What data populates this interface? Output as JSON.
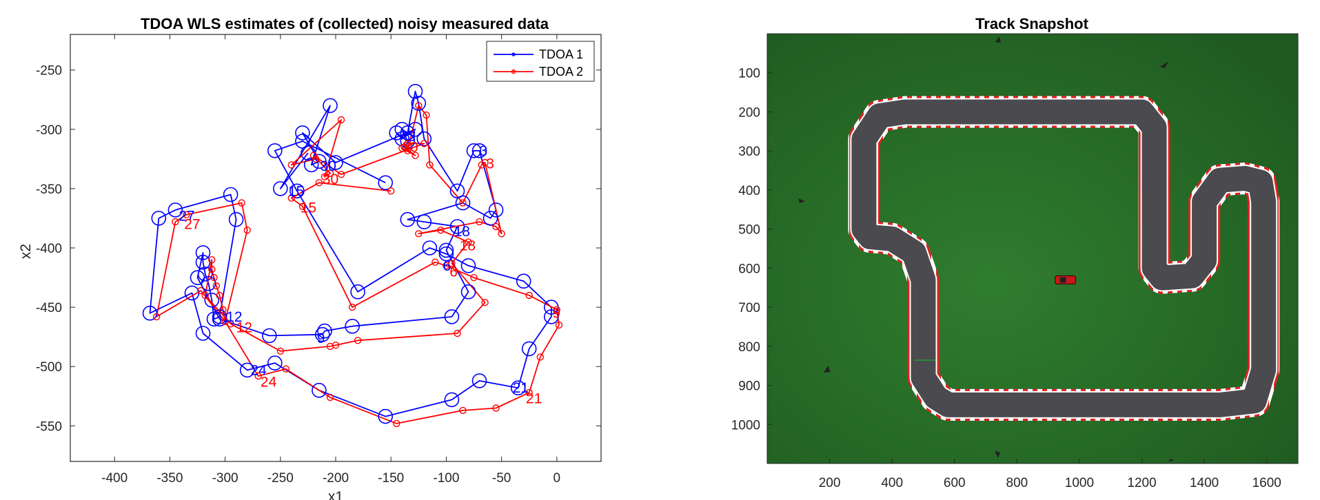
{
  "chart_data": [
    {
      "type": "line",
      "title": "TDOA WLS estimates of (collected) noisy measured data",
      "xlabel": "x1",
      "ylabel": "x2",
      "xlim": [
        -440,
        40
      ],
      "ylim": [
        -580,
        -220
      ],
      "xticks": [
        -400,
        -350,
        -300,
        -250,
        -200,
        -150,
        -100,
        -50,
        0
      ],
      "yticks": [
        -250,
        -300,
        -350,
        -400,
        -450,
        -500,
        -550
      ],
      "legend_position": "top-right",
      "series": [
        {
          "name": "TDOA 1",
          "color": "#0000ff",
          "points": [
            [
              -155,
              -345
            ],
            [
              -230,
              -310
            ],
            [
              -255,
              -318
            ],
            [
              -235,
              -352
            ],
            [
              -180,
              -437
            ],
            [
              -115,
              -400
            ],
            [
              -100,
              -405
            ],
            [
              -80,
              -415
            ],
            [
              -30,
              -428
            ],
            [
              -5,
              -450
            ],
            [
              -5,
              -458
            ],
            [
              -25,
              -485
            ],
            [
              -35,
              -518
            ],
            [
              -70,
              -512
            ],
            [
              -95,
              -528
            ],
            [
              -155,
              -542
            ],
            [
              -215,
              -520
            ],
            [
              -255,
              -497
            ],
            [
              -280,
              -503
            ],
            [
              -320,
              -472
            ],
            [
              -330,
              -438
            ],
            [
              -368,
              -455
            ],
            [
              -360,
              -375
            ],
            [
              -345,
              -368
            ],
            [
              -295,
              -355
            ],
            [
              -290,
              -376
            ],
            [
              -305,
              -458
            ],
            [
              -310,
              -460
            ],
            [
              -312,
              -444
            ],
            [
              -315,
              -430
            ],
            [
              -318,
              -422
            ],
            [
              -320,
              -412
            ],
            [
              -320,
              -404
            ],
            [
              -325,
              -425
            ],
            [
              -305,
              -460
            ],
            [
              -260,
              -474
            ],
            [
              -212,
              -473
            ],
            [
              -210,
              -470
            ],
            [
              -185,
              -466
            ],
            [
              -95,
              -458
            ],
            [
              -80,
              -437
            ],
            [
              -100,
              -402
            ],
            [
              -90,
              -382
            ],
            [
              -120,
              -378
            ],
            [
              -135,
              -376
            ],
            [
              -85,
              -362
            ],
            [
              -60,
              -375
            ],
            [
              -55,
              -368
            ],
            [
              -70,
              -318
            ],
            [
              -75,
              -318
            ],
            [
              -90,
              -352
            ],
            [
              -120,
              -308
            ],
            [
              -125,
              -278
            ],
            [
              -128,
              -268
            ],
            [
              -135,
              -303
            ],
            [
              -140,
              -300
            ],
            [
              -135,
              -310
            ],
            [
              -145,
              -303
            ],
            [
              -140,
              -308
            ],
            [
              -128,
              -300
            ],
            [
              -200,
              -328
            ],
            [
              -230,
              -303
            ],
            [
              -215,
              -327
            ],
            [
              -222,
              -330
            ],
            [
              -205,
              -280
            ],
            [
              -250,
              -350
            ],
            [
              -225,
              -320
            ]
          ]
        },
        {
          "name": "TDOA 2",
          "color": "#ff0000",
          "points": [
            [
              -150,
              -352
            ],
            [
              -215,
              -345
            ],
            [
              -240,
              -358
            ],
            [
              -230,
              -365
            ],
            [
              -185,
              -450
            ],
            [
              -110,
              -412
            ],
            [
              -100,
              -415
            ],
            [
              -75,
              -425
            ],
            [
              -25,
              -440
            ],
            [
              0,
              -452
            ],
            [
              2,
              -465
            ],
            [
              -15,
              -492
            ],
            [
              -25,
              -522
            ],
            [
              -55,
              -535
            ],
            [
              -85,
              -537
            ],
            [
              -145,
              -548
            ],
            [
              -205,
              -526
            ],
            [
              -245,
              -502
            ],
            [
              -270,
              -508
            ],
            [
              -300,
              -462
            ],
            [
              -322,
              -436
            ],
            [
              -362,
              -458
            ],
            [
              -345,
              -378
            ],
            [
              -335,
              -372
            ],
            [
              -285,
              -362
            ],
            [
              -280,
              -385
            ],
            [
              -300,
              -462
            ],
            [
              -302,
              -452
            ],
            [
              -305,
              -440
            ],
            [
              -308,
              -432
            ],
            [
              -310,
              -425
            ],
            [
              -312,
              -418
            ],
            [
              -312,
              -410
            ],
            [
              -318,
              -440
            ],
            [
              -295,
              -464
            ],
            [
              -250,
              -487
            ],
            [
              -205,
              -483
            ],
            [
              -200,
              -482
            ],
            [
              -180,
              -478
            ],
            [
              -90,
              -472
            ],
            [
              -65,
              -446
            ],
            [
              -95,
              -413
            ],
            [
              -80,
              -395
            ],
            [
              -105,
              -385
            ],
            [
              -125,
              -388
            ],
            [
              -70,
              -378
            ],
            [
              -55,
              -382
            ],
            [
              -50,
              -388
            ],
            [
              -65,
              -328
            ],
            [
              -68,
              -330
            ],
            [
              -85,
              -362
            ],
            [
              -115,
              -330
            ],
            [
              -118,
              -288
            ],
            [
              -125,
              -280
            ],
            [
              -135,
              -318
            ],
            [
              -138,
              -315
            ],
            [
              -128,
              -322
            ],
            [
              -140,
              -316
            ],
            [
              -135,
              -312
            ],
            [
              -120,
              -312
            ],
            [
              -195,
              -338
            ],
            [
              -220,
              -322
            ],
            [
              -205,
              -337
            ],
            [
              -210,
              -340
            ],
            [
              -195,
              -292
            ],
            [
              -240,
              -330
            ],
            [
              -218,
              -325
            ]
          ]
        }
      ],
      "annotations": [
        {
          "text": "15",
          "series": "TDOA 1",
          "x": -243,
          "y": -352
        },
        {
          "text": "15",
          "series": "TDOA 2",
          "x": -232,
          "y": -366
        },
        {
          "text": "30",
          "series": "TDOA 1",
          "x": -214,
          "y": -331
        },
        {
          "text": "30",
          "series": "TDOA 2",
          "x": -212,
          "y": -342
        },
        {
          "text": "3",
          "series": "TDOA 1",
          "x": -135,
          "y": -306
        },
        {
          "text": "30",
          "series": "TDOA 2",
          "x": -140,
          "y": -315
        },
        {
          "text": "3",
          "series": "TDOA 1",
          "x": -70,
          "y": -318
        },
        {
          "text": "3",
          "series": "TDOA 2",
          "x": -64,
          "y": -329
        },
        {
          "text": "27",
          "series": "TDOA 1",
          "x": -342,
          "y": -373
        },
        {
          "text": "27",
          "series": "TDOA 2",
          "x": -337,
          "y": -380
        },
        {
          "text": "18",
          "series": "TDOA 1",
          "x": -93,
          "y": -386
        },
        {
          "text": "18",
          "series": "TDOA 2",
          "x": -88,
          "y": -398
        },
        {
          "text": "6",
          "series": "TDOA 1",
          "x": -103,
          "y": -415
        },
        {
          "text": "6",
          "series": "TDOA 2",
          "x": -97,
          "y": -420
        },
        {
          "text": "12",
          "series": "TDOA 1",
          "x": -299,
          "y": -458
        },
        {
          "text": "12",
          "series": "TDOA 2",
          "x": -290,
          "y": -467
        },
        {
          "text": "24",
          "series": "TDOA 1",
          "x": -277,
          "y": -503
        },
        {
          "text": "24",
          "series": "TDOA 2",
          "x": -268,
          "y": -513
        },
        {
          "text": "21",
          "series": "TDOA 1",
          "x": -40,
          "y": -518
        },
        {
          "text": "21",
          "series": "TDOA 2",
          "x": -28,
          "y": -527
        },
        {
          "text": "9",
          "series": "TDOA 1",
          "x": -217,
          "y": -476
        },
        {
          "text": "9",
          "series": "TDOA 2",
          "x": -4,
          "y": -455
        }
      ]
    },
    {
      "type": "image",
      "title": "Track Snapshot",
      "xlim": [
        0,
        1700
      ],
      "ylim": [
        1100,
        0
      ],
      "xticks": [
        200,
        400,
        600,
        800,
        1000,
        1200,
        1400,
        1600
      ],
      "yticks": [
        100,
        200,
        300,
        400,
        500,
        600,
        700,
        800,
        900,
        1000
      ],
      "description_colors": {
        "grass": "#2f7a30",
        "track": "#4b4b4b",
        "curb_red": "#e02020",
        "curb_white": "#ffffff",
        "car": "#c81818"
      },
      "track_centerline": [
        [
          310,
          500
        ],
        [
          310,
          270
        ],
        [
          360,
          210
        ],
        [
          440,
          200
        ],
        [
          1200,
          200
        ],
        [
          1240,
          240
        ],
        [
          1240,
          600
        ],
        [
          1265,
          625
        ],
        [
          1360,
          620
        ],
        [
          1400,
          580
        ],
        [
          1400,
          430
        ],
        [
          1450,
          375
        ],
        [
          1530,
          370
        ],
        [
          1580,
          380
        ],
        [
          1590,
          430
        ],
        [
          1590,
          860
        ],
        [
          1560,
          940
        ],
        [
          1450,
          950
        ],
        [
          580,
          950
        ],
        [
          540,
          930
        ],
        [
          500,
          880
        ],
        [
          500,
          630
        ],
        [
          470,
          560
        ],
        [
          400,
          525
        ],
        [
          330,
          520
        ],
        [
          310,
          500
        ]
      ],
      "car": {
        "x": 955,
        "y": 630
      }
    }
  ]
}
